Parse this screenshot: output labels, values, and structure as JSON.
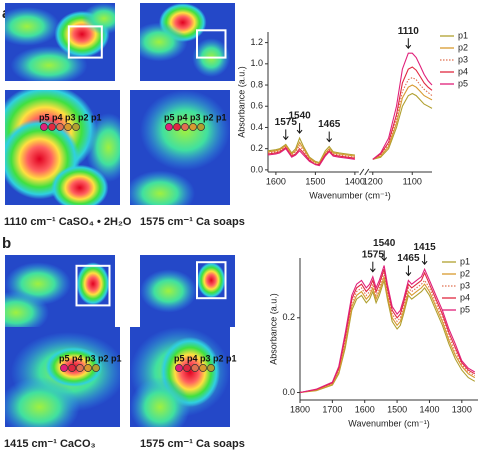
{
  "panels": [
    "a",
    "b"
  ],
  "captions": [
    "1110 cm⁻¹ CaSO₄ • 2H₂O",
    "1575 cm⁻¹ Ca soaps",
    "1415 cm⁻¹ CaCO₃",
    "1575 cm⁻¹ Ca soaps"
  ],
  "point_labels": [
    "p5 p4 p3 p2 p1",
    "p5 p4 p3 p2 p1",
    "p5 p4 p3 p2 p1",
    "p5 p4 p3 p2 p1"
  ],
  "chart_data": [
    {
      "type": "line",
      "xlabel": "Wavenumber (cm⁻¹)",
      "ylabel": "Absorbance (a.u.)",
      "xlims": [
        [
          1620,
          1390
        ],
        [
          1210,
          1050
        ]
      ],
      "xticks": [
        1600,
        1500,
        1400,
        1200,
        1100
      ],
      "ylim": [
        -0.02,
        1.3
      ],
      "yticks": [
        {
          "value": 0,
          "label": "0.0"
        },
        0.2,
        0.4,
        0.6,
        0.8,
        {
          "value": 1,
          "label": "1.0"
        },
        1.2
      ],
      "annotations": [
        1575,
        1540,
        1465,
        1110
      ],
      "legend": "outside-right",
      "x": [
        1620,
        1600,
        1590,
        1575,
        1560,
        1550,
        1540,
        1530,
        1515,
        1500,
        1490,
        1475,
        1465,
        1455,
        1440,
        1420,
        1400,
        1200,
        1180,
        1160,
        1140,
        1125,
        1110,
        1100,
        1090,
        1080,
        1070,
        1060,
        1050
      ],
      "series": [
        {
          "name": "p1",
          "color": "#b0a030",
          "style": "solid",
          "values": [
            0.18,
            0.19,
            0.2,
            0.24,
            0.16,
            0.2,
            0.3,
            0.22,
            0.12,
            0.08,
            0.07,
            0.18,
            0.22,
            0.17,
            0.16,
            0.15,
            0.14,
            0.1,
            0.12,
            0.2,
            0.4,
            0.6,
            0.7,
            0.72,
            0.7,
            0.66,
            0.62,
            0.6,
            0.58
          ]
        },
        {
          "name": "p2",
          "color": "#d89a30",
          "style": "solid",
          "values": [
            0.17,
            0.18,
            0.19,
            0.23,
            0.15,
            0.18,
            0.26,
            0.2,
            0.11,
            0.07,
            0.06,
            0.16,
            0.2,
            0.16,
            0.15,
            0.14,
            0.13,
            0.1,
            0.13,
            0.22,
            0.44,
            0.68,
            0.78,
            0.8,
            0.78,
            0.74,
            0.7,
            0.68,
            0.66
          ]
        },
        {
          "name": "p3",
          "color": "#e07050",
          "style": "dotted",
          "values": [
            0.16,
            0.17,
            0.18,
            0.22,
            0.14,
            0.17,
            0.23,
            0.18,
            0.1,
            0.06,
            0.06,
            0.15,
            0.19,
            0.15,
            0.14,
            0.13,
            0.12,
            0.1,
            0.14,
            0.24,
            0.48,
            0.74,
            0.85,
            0.87,
            0.85,
            0.8,
            0.76,
            0.73,
            0.7
          ]
        },
        {
          "name": "p4",
          "color": "#e02840",
          "style": "solid",
          "values": [
            0.15,
            0.16,
            0.17,
            0.21,
            0.13,
            0.15,
            0.2,
            0.16,
            0.09,
            0.05,
            0.05,
            0.14,
            0.18,
            0.14,
            0.13,
            0.12,
            0.11,
            0.1,
            0.15,
            0.26,
            0.52,
            0.82,
            0.95,
            0.97,
            0.94,
            0.88,
            0.82,
            0.78,
            0.75
          ]
        },
        {
          "name": "p5",
          "color": "#e0207a",
          "style": "solid",
          "values": [
            0.14,
            0.15,
            0.16,
            0.2,
            0.12,
            0.14,
            0.18,
            0.14,
            0.08,
            0.05,
            0.04,
            0.13,
            0.17,
            0.13,
            0.12,
            0.11,
            0.1,
            0.1,
            0.16,
            0.3,
            0.6,
            0.95,
            1.1,
            1.1,
            1.06,
            0.98,
            0.9,
            0.84,
            0.8
          ]
        }
      ]
    },
    {
      "type": "line",
      "xlabel": "Wavenumber (cm⁻¹)",
      "ylabel": "Absorbance (a.u.)",
      "xlim": [
        1800,
        1250
      ],
      "xticks": [
        1800,
        1700,
        1600,
        1500,
        1400,
        1300
      ],
      "ylim": [
        -0.02,
        0.36
      ],
      "yticks": [
        {
          "value": 0,
          "label": "0.0"
        },
        0.2
      ],
      "annotations": [
        1575,
        1540,
        1465,
        1415
      ],
      "legend": "upper-right",
      "x": [
        1800,
        1750,
        1700,
        1680,
        1660,
        1640,
        1625,
        1610,
        1595,
        1585,
        1575,
        1565,
        1555,
        1540,
        1530,
        1515,
        1500,
        1490,
        1480,
        1465,
        1455,
        1440,
        1425,
        1415,
        1400,
        1380,
        1360,
        1340,
        1320,
        1300,
        1280,
        1260
      ],
      "series": [
        {
          "name": "p1",
          "color": "#b0a030",
          "style": "solid",
          "values": [
            0,
            0.005,
            0.02,
            0.05,
            0.12,
            0.22,
            0.25,
            0.26,
            0.24,
            0.25,
            0.27,
            0.24,
            0.26,
            0.3,
            0.25,
            0.19,
            0.17,
            0.18,
            0.21,
            0.26,
            0.25,
            0.26,
            0.27,
            0.28,
            0.26,
            0.22,
            0.18,
            0.13,
            0.09,
            0.06,
            0.04,
            0.03
          ]
        },
        {
          "name": "p2",
          "color": "#d89a30",
          "style": "solid",
          "values": [
            0,
            0.006,
            0.022,
            0.055,
            0.13,
            0.23,
            0.26,
            0.27,
            0.25,
            0.26,
            0.28,
            0.25,
            0.27,
            0.31,
            0.26,
            0.2,
            0.18,
            0.19,
            0.22,
            0.27,
            0.26,
            0.27,
            0.28,
            0.29,
            0.27,
            0.23,
            0.19,
            0.14,
            0.1,
            0.07,
            0.05,
            0.04
          ]
        },
        {
          "name": "p3",
          "color": "#e07050",
          "style": "dotted",
          "values": [
            0,
            0.007,
            0.024,
            0.06,
            0.14,
            0.24,
            0.27,
            0.28,
            0.26,
            0.27,
            0.29,
            0.26,
            0.28,
            0.32,
            0.27,
            0.21,
            0.19,
            0.2,
            0.23,
            0.28,
            0.27,
            0.28,
            0.29,
            0.3,
            0.28,
            0.24,
            0.2,
            0.15,
            0.11,
            0.075,
            0.055,
            0.045
          ]
        },
        {
          "name": "p4",
          "color": "#e02840",
          "style": "solid",
          "values": [
            0,
            0.008,
            0.026,
            0.065,
            0.15,
            0.25,
            0.28,
            0.29,
            0.27,
            0.28,
            0.3,
            0.27,
            0.29,
            0.33,
            0.28,
            0.22,
            0.2,
            0.21,
            0.24,
            0.29,
            0.28,
            0.29,
            0.3,
            0.32,
            0.29,
            0.25,
            0.21,
            0.16,
            0.12,
            0.08,
            0.06,
            0.05
          ]
        },
        {
          "name": "p5",
          "color": "#e0207a",
          "style": "solid",
          "values": [
            0,
            0.009,
            0.028,
            0.07,
            0.16,
            0.26,
            0.29,
            0.3,
            0.28,
            0.29,
            0.31,
            0.28,
            0.3,
            0.34,
            0.29,
            0.23,
            0.21,
            0.22,
            0.25,
            0.3,
            0.29,
            0.3,
            0.31,
            0.33,
            0.3,
            0.26,
            0.22,
            0.17,
            0.13,
            0.085,
            0.065,
            0.055
          ]
        }
      ]
    }
  ]
}
